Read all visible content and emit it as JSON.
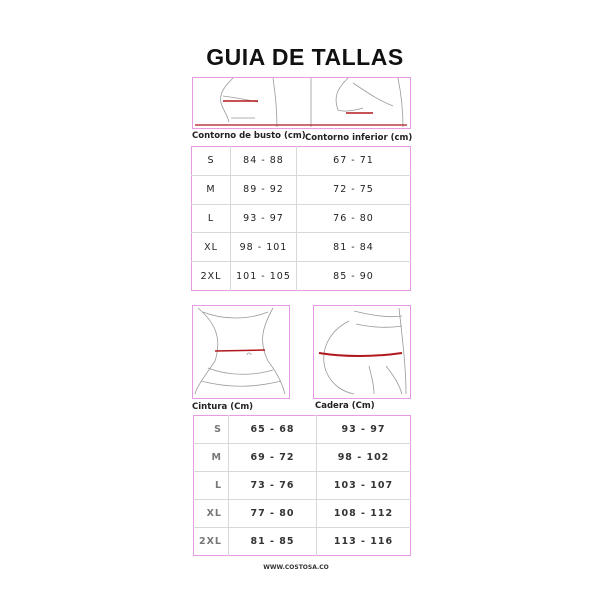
{
  "title": "GUIA DE TALLAS",
  "top": {
    "labels": [
      "Contorno de busto (cm)",
      "Contorno inferior (cm)"
    ],
    "rows": [
      [
        "S",
        "84 - 88",
        "67 - 71"
      ],
      [
        "M",
        "89 - 92",
        "72 - 75"
      ],
      [
        "L",
        "93 - 97",
        "76 - 80"
      ],
      [
        "XL",
        "98 - 101",
        "81 - 84"
      ],
      [
        "2XL",
        "101 - 105",
        "85 - 90"
      ]
    ]
  },
  "bottom": {
    "labels": [
      "Cintura (Cm)",
      "Cadera (Cm)"
    ],
    "rows": [
      [
        "S",
        "65 - 68",
        "93 - 97"
      ],
      [
        "M",
        "69 - 72",
        "98 - 102"
      ],
      [
        "L",
        "73 - 76",
        "103 - 107"
      ],
      [
        "XL",
        "77 - 80",
        "108 - 112"
      ],
      [
        "2XL",
        "81 - 85",
        "113 - 116"
      ]
    ]
  },
  "footer": "WWW.COSTOSA.CO",
  "colors": {
    "border": "#e79be6",
    "measure_line": "#b0181e"
  }
}
